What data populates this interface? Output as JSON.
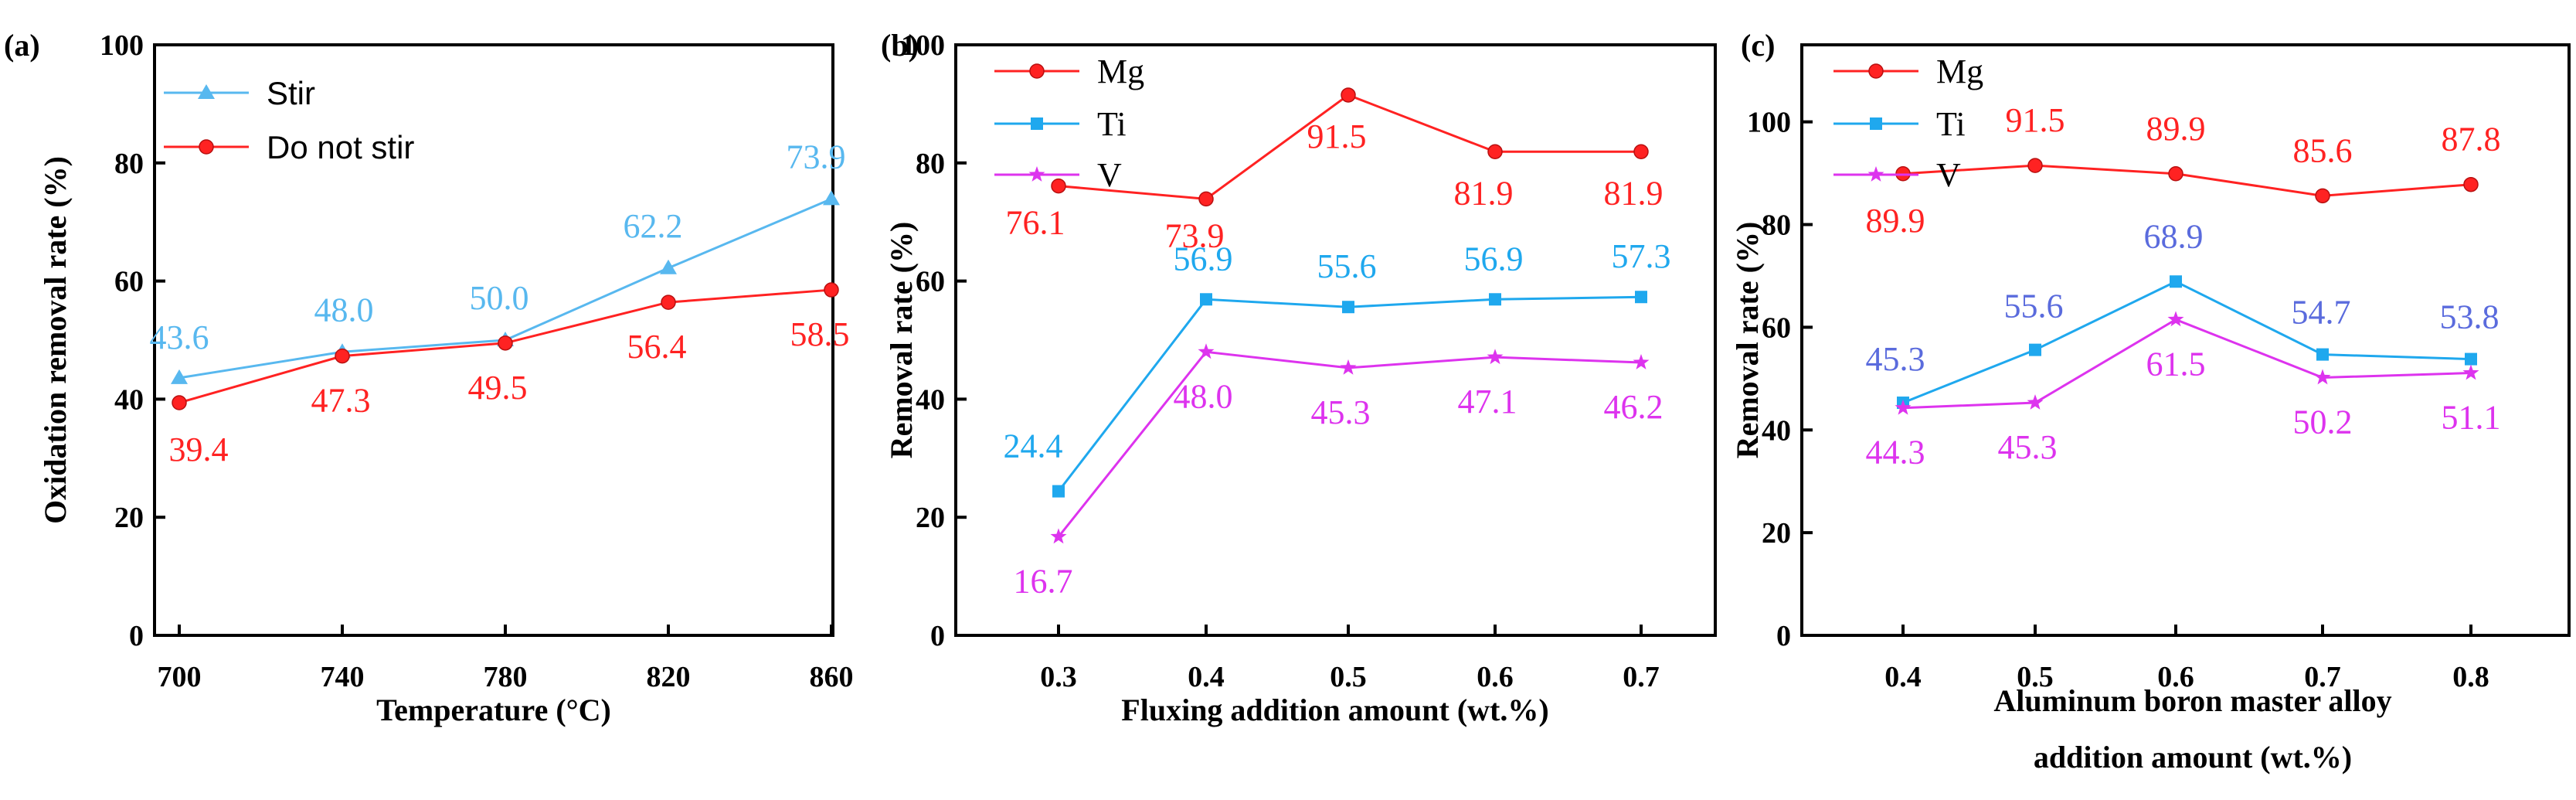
{
  "colors": {
    "red": "#ff2222",
    "blue": "#1fa8ee",
    "lightblue": "#58b8ef",
    "magenta": "#dd33ee",
    "periwinkle": "#5a6bdd",
    "axis": "#000000"
  },
  "chart_data": [
    {
      "type": "line",
      "panel_label": "(a)",
      "xlabel": "Temperature (°C)",
      "ylabel": "Oxidation removal rate (%)",
      "categories": [
        "700",
        "740",
        "780",
        "820",
        "860"
      ],
      "ylim": [
        0,
        100
      ],
      "yticks": [
        "0",
        "20",
        "40",
        "60",
        "80",
        "100"
      ],
      "legend_position": "top-left",
      "series": [
        {
          "name": "Stir",
          "marker": "triangle",
          "values": [
            43.6,
            48.0,
            50.0,
            62.2,
            73.9
          ],
          "labels": [
            "43.6",
            "48.0",
            "50.0",
            "62.2",
            "73.9"
          ]
        },
        {
          "name": "Do not stir",
          "marker": "circle",
          "values": [
            39.4,
            47.3,
            49.5,
            56.4,
            58.5
          ],
          "labels": [
            "39.4",
            "47.3",
            "49.5",
            "56.4",
            "58.5"
          ]
        }
      ]
    },
    {
      "type": "line",
      "panel_label": "(b)",
      "xlabel": "Fluxing addition amount (wt.%)",
      "ylabel": "Removal rate (%)",
      "categories": [
        "0.3",
        "0.4",
        "0.5",
        "0.6",
        "0.7"
      ],
      "ylim": [
        0,
        100
      ],
      "yticks": [
        "0",
        "20",
        "40",
        "60",
        "80",
        "100"
      ],
      "legend_position": "top-left",
      "series": [
        {
          "name": "Mg",
          "marker": "circle",
          "values": [
            76.1,
            73.9,
            91.5,
            81.9,
            81.9
          ],
          "labels": [
            "76.1",
            "73.9",
            "91.5",
            "81.9",
            "81.9"
          ]
        },
        {
          "name": "Ti",
          "marker": "square",
          "values": [
            24.4,
            56.9,
            55.6,
            56.9,
            57.3
          ],
          "labels": [
            "24.4",
            "56.9",
            "55.6",
            "56.9",
            "57.3"
          ]
        },
        {
          "name": "V",
          "marker": "star",
          "values": [
            16.7,
            48.0,
            45.3,
            47.1,
            46.2
          ],
          "labels": [
            "16.7",
            "48.0",
            "45.3",
            "47.1",
            "46.2"
          ]
        }
      ]
    },
    {
      "type": "line",
      "panel_label": "(c)",
      "xlabel_lines": [
        "Aluminum boron master alloy",
        "addition amount (wt.%)"
      ],
      "ylabel": "Removal rate (%)",
      "categories": [
        "0.4",
        "0.5",
        "0.6",
        "0.7",
        "0.8"
      ],
      "ylim": [
        0,
        115
      ],
      "yticks": [
        "0",
        "20",
        "40",
        "60",
        "80",
        "100"
      ],
      "legend_position": "top-left",
      "series": [
        {
          "name": "Mg",
          "marker": "circle",
          "values": [
            89.9,
            91.5,
            89.9,
            85.6,
            87.8
          ],
          "labels": [
            "89.9",
            "91.5",
            "89.9",
            "85.6",
            "87.8"
          ]
        },
        {
          "name": "Ti",
          "marker": "square",
          "values": [
            45.3,
            55.6,
            68.9,
            54.7,
            53.8
          ],
          "labels": [
            "45.3",
            "55.6",
            "68.9",
            "54.7",
            "53.8"
          ]
        },
        {
          "name": "V",
          "marker": "star",
          "values": [
            44.3,
            45.3,
            61.5,
            50.2,
            51.1
          ],
          "labels": [
            "44.3",
            "45.3",
            "61.5",
            "50.2",
            "51.1"
          ]
        }
      ]
    }
  ]
}
